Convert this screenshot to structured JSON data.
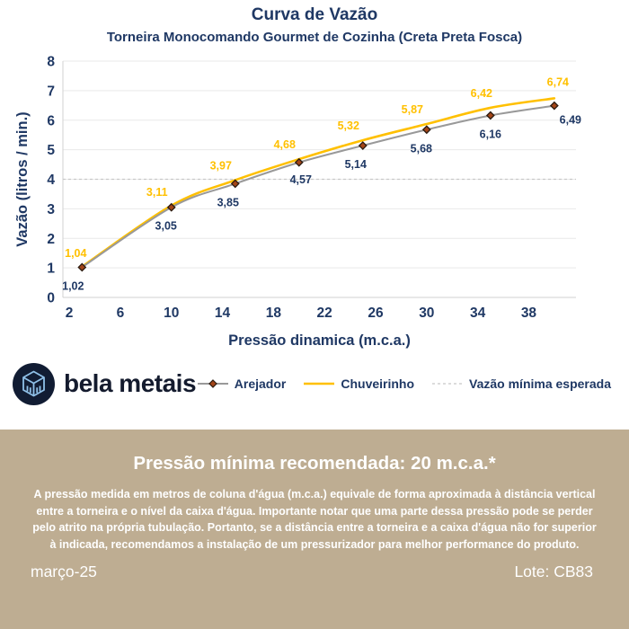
{
  "header": {
    "title": "Curva de Vazão",
    "subtitle": "Torneira Monocomando Gourmet de Cozinha (Creta Preta Fosca)"
  },
  "chart_data": {
    "type": "line",
    "x": [
      3,
      10,
      15,
      20,
      25,
      30,
      35,
      40
    ],
    "series": [
      {
        "name": "Arejador",
        "values": [
          1.02,
          3.05,
          3.85,
          4.57,
          5.14,
          5.68,
          6.16,
          6.49
        ],
        "labels": [
          "1,02",
          "3,05",
          "3,85",
          "4,57",
          "5,14",
          "5,68",
          "6,16",
          "6,49"
        ],
        "color": "#999999",
        "marker": "diamond"
      },
      {
        "name": "Chuveirinho",
        "values": [
          1.04,
          3.11,
          3.97,
          4.68,
          5.32,
          5.87,
          6.42,
          6.74
        ],
        "labels": [
          "1,04",
          "3,11",
          "3,97",
          "4,68",
          "5,32",
          "5,87",
          "6,42",
          "6,74"
        ],
        "color": "#FFC000",
        "marker": "none"
      },
      {
        "name": "Vazão mínima esperada",
        "constant_value": 4,
        "style": "dashed",
        "color": "#C8C8C8"
      }
    ],
    "xlabel": "Pressão dinamica (m.c.a.)",
    "ylabel": "Vazão (litros / min.)",
    "xticks": [
      2,
      6,
      10,
      14,
      18,
      22,
      26,
      30,
      34,
      38
    ],
    "yticks": [
      0,
      1,
      2,
      3,
      4,
      5,
      6,
      7,
      8
    ],
    "xlim": [
      1.5,
      41.7
    ],
    "ylim": [
      0,
      8
    ],
    "grid": true,
    "legend_position": "bottom"
  },
  "logo": {
    "name": "bela metais"
  },
  "info_panel": {
    "heading": "Pressão mínima recomendada: 20 m.c.a.*",
    "body": "A pressão medida em metros de coluna d'água (m.c.a.) equivale de forma aproximada à distância vertical entre a torneira e o nível da caixa d'água. Importante notar que uma parte dessa pressão pode se perder pelo atrito na própria tubulação. Portanto, se a distância entre a torneira e a caixa d'água não for superior à indicada, recomendamos a instalação de um pressurizador para melhor performance do produto.",
    "date": "março-25",
    "lot": "Lote: CB83"
  },
  "colors": {
    "navy": "#1F3864",
    "gold": "#FFC000",
    "gray_line": "#999999",
    "dashed_line": "#C8C8C8",
    "grid": "#E9E9E9",
    "axis": "#D2D2D2",
    "marker_fill": "#A34518",
    "marker_stroke": "#2B1B10",
    "tan_bg": "#BEAD92",
    "logo_circle": "#111C33",
    "logo_cube": "#8FC0E8",
    "logo_text": "#141B2E"
  }
}
